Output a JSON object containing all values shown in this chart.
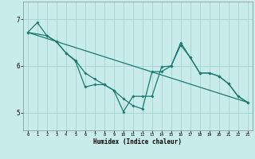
{
  "xlabel": "Humidex (Indice chaleur)",
  "background_color": "#c8ecea",
  "grid_color": "#9ecece",
  "line_color": "#1a7a6e",
  "xlim_min": -0.5,
  "xlim_max": 23.5,
  "ylim_min": 4.62,
  "ylim_max": 7.38,
  "yticks": [
    5,
    6,
    7
  ],
  "xticks": [
    0,
    1,
    2,
    3,
    4,
    5,
    6,
    7,
    8,
    9,
    10,
    11,
    12,
    13,
    14,
    15,
    16,
    17,
    18,
    19,
    20,
    21,
    22,
    23
  ],
  "line1_x": [
    0,
    1,
    2,
    3,
    4,
    5,
    6,
    7,
    8,
    9,
    10,
    11,
    12,
    13,
    14,
    15,
    16,
    17,
    18,
    19,
    20,
    21,
    22,
    23
  ],
  "line1_y": [
    6.72,
    6.93,
    6.65,
    6.52,
    6.28,
    6.12,
    5.85,
    5.72,
    5.6,
    5.48,
    5.3,
    5.15,
    5.08,
    5.88,
    5.88,
    6.0,
    6.45,
    6.18,
    5.85,
    5.85,
    5.78,
    5.62,
    5.35,
    5.22
  ],
  "line2_x": [
    0,
    2,
    3,
    4,
    5,
    6,
    7,
    8,
    9,
    10,
    11,
    12,
    13,
    14,
    15,
    16,
    17,
    18,
    19,
    20,
    21,
    22,
    23
  ],
  "line2_y": [
    6.72,
    6.65,
    6.52,
    6.28,
    6.1,
    5.55,
    5.6,
    5.6,
    5.48,
    5.02,
    5.35,
    5.35,
    5.35,
    5.98,
    6.0,
    6.5,
    6.18,
    5.85,
    5.85,
    5.78,
    5.62,
    5.35,
    5.22
  ],
  "line3_x": [
    0,
    23
  ],
  "line3_y": [
    6.72,
    5.22
  ]
}
